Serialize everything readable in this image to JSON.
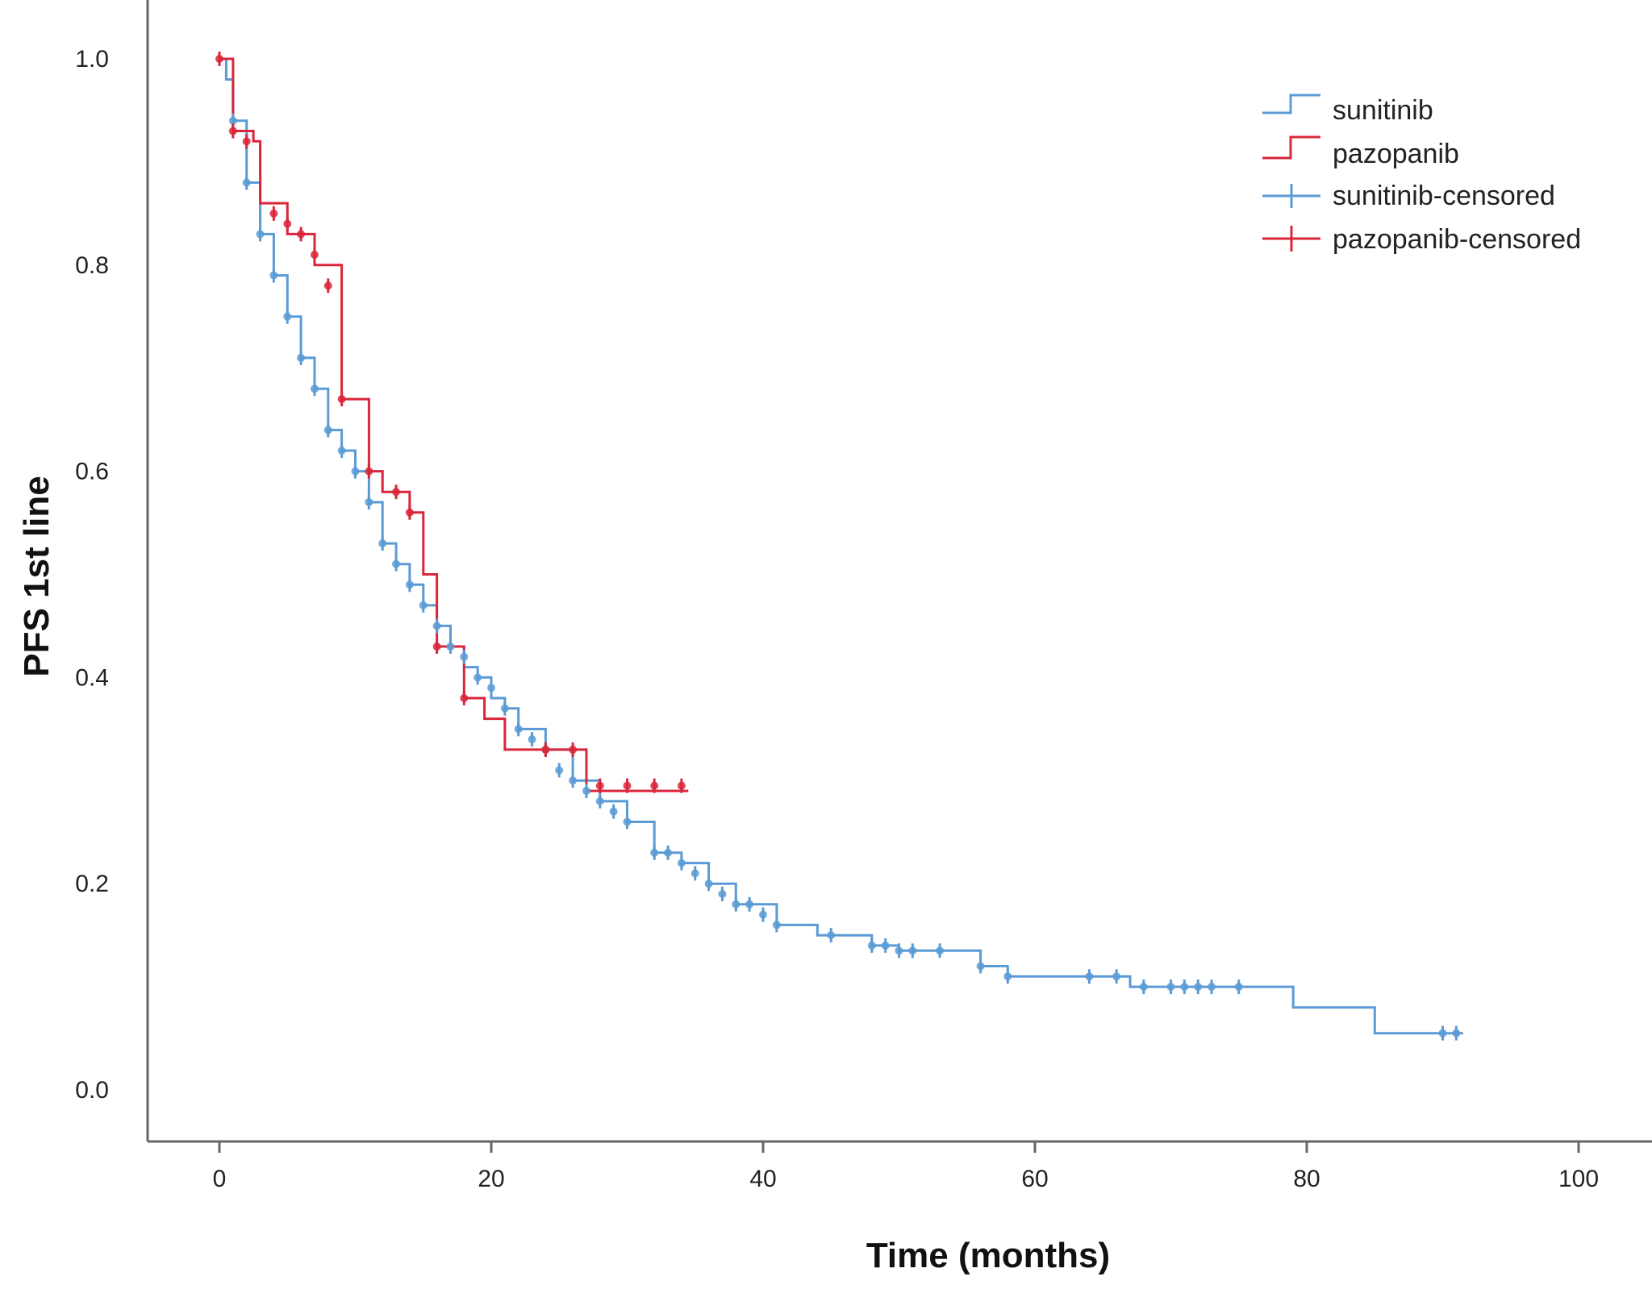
{
  "chart_data": {
    "type": "line",
    "subtype": "kaplan-meier-step",
    "xlabel": "Time (months)",
    "ylabel": "PFS 1st line",
    "xlim": [
      -4,
      104
    ],
    "ylim": [
      -0.03,
      1.07
    ],
    "xticks": [
      0,
      20,
      40,
      60,
      80,
      100
    ],
    "yticks": [
      0.0,
      0.2,
      0.4,
      0.6,
      0.8,
      1.0
    ],
    "xtick_labels": [
      "0",
      "20",
      "40",
      "60",
      "80",
      "100"
    ],
    "ytick_labels": [
      "0.0",
      "0.2",
      "0.4",
      "0.6",
      "0.8",
      "1.0"
    ],
    "grid": false,
    "legend_position": "top-right",
    "legend": [
      "sunitinib",
      "pazopanib",
      "sunitinib-censored",
      "pazopanib-censored"
    ],
    "series": [
      {
        "name": "sunitinib",
        "color": "#5b9bd5",
        "steps": [
          [
            0,
            1.0
          ],
          [
            0.5,
            0.98
          ],
          [
            1,
            0.94
          ],
          [
            2,
            0.88
          ],
          [
            3,
            0.83
          ],
          [
            4,
            0.79
          ],
          [
            5,
            0.75
          ],
          [
            6,
            0.71
          ],
          [
            7,
            0.68
          ],
          [
            8,
            0.64
          ],
          [
            9,
            0.62
          ],
          [
            10,
            0.6
          ],
          [
            11,
            0.57
          ],
          [
            12,
            0.53
          ],
          [
            13,
            0.51
          ],
          [
            14,
            0.49
          ],
          [
            15,
            0.47
          ],
          [
            16,
            0.45
          ],
          [
            17,
            0.43
          ],
          [
            18,
            0.41
          ],
          [
            19,
            0.4
          ],
          [
            20,
            0.38
          ],
          [
            21,
            0.37
          ],
          [
            22,
            0.35
          ],
          [
            24,
            0.33
          ],
          [
            26,
            0.3
          ],
          [
            28,
            0.28
          ],
          [
            30,
            0.26
          ],
          [
            32,
            0.23
          ],
          [
            34,
            0.22
          ],
          [
            36,
            0.2
          ],
          [
            38,
            0.18
          ],
          [
            41,
            0.16
          ],
          [
            44,
            0.15
          ],
          [
            48,
            0.14
          ],
          [
            50,
            0.135
          ],
          [
            56,
            0.12
          ],
          [
            58,
            0.11
          ],
          [
            67,
            0.1
          ],
          [
            79,
            0.08
          ],
          [
            85,
            0.055
          ],
          [
            91.5,
            0.055
          ]
        ],
        "censored": [
          [
            1,
            0.94
          ],
          [
            2,
            0.88
          ],
          [
            3,
            0.83
          ],
          [
            4,
            0.79
          ],
          [
            5,
            0.75
          ],
          [
            6,
            0.71
          ],
          [
            7,
            0.68
          ],
          [
            8,
            0.64
          ],
          [
            9,
            0.62
          ],
          [
            10,
            0.6
          ],
          [
            11,
            0.57
          ],
          [
            12,
            0.53
          ],
          [
            13,
            0.51
          ],
          [
            14,
            0.49
          ],
          [
            15,
            0.47
          ],
          [
            16,
            0.45
          ],
          [
            17,
            0.43
          ],
          [
            18,
            0.42
          ],
          [
            19,
            0.4
          ],
          [
            20,
            0.39
          ],
          [
            21,
            0.37
          ],
          [
            22,
            0.35
          ],
          [
            23,
            0.34
          ],
          [
            24,
            0.33
          ],
          [
            25,
            0.31
          ],
          [
            26,
            0.3
          ],
          [
            27,
            0.29
          ],
          [
            28,
            0.28
          ],
          [
            29,
            0.27
          ],
          [
            30,
            0.26
          ],
          [
            32,
            0.23
          ],
          [
            33,
            0.23
          ],
          [
            34,
            0.22
          ],
          [
            35,
            0.21
          ],
          [
            36,
            0.2
          ],
          [
            37,
            0.19
          ],
          [
            38,
            0.18
          ],
          [
            39,
            0.18
          ],
          [
            40,
            0.17
          ],
          [
            41,
            0.16
          ],
          [
            45,
            0.15
          ],
          [
            48,
            0.14
          ],
          [
            49,
            0.14
          ],
          [
            50,
            0.135
          ],
          [
            51,
            0.135
          ],
          [
            53,
            0.135
          ],
          [
            56,
            0.12
          ],
          [
            58,
            0.11
          ],
          [
            64,
            0.11
          ],
          [
            66,
            0.11
          ],
          [
            68,
            0.1
          ],
          [
            70,
            0.1
          ],
          [
            71,
            0.1
          ],
          [
            72,
            0.1
          ],
          [
            73,
            0.1
          ],
          [
            75,
            0.1
          ],
          [
            90,
            0.055
          ],
          [
            91,
            0.055
          ]
        ]
      },
      {
        "name": "pazopanib",
        "color": "#d9263a",
        "steps": [
          [
            0,
            1.0
          ],
          [
            1,
            0.93
          ],
          [
            2.5,
            0.92
          ],
          [
            3,
            0.86
          ],
          [
            5,
            0.83
          ],
          [
            7,
            0.8
          ],
          [
            9,
            0.67
          ],
          [
            11,
            0.6
          ],
          [
            12,
            0.58
          ],
          [
            14,
            0.56
          ],
          [
            15,
            0.5
          ],
          [
            16,
            0.43
          ],
          [
            18,
            0.38
          ],
          [
            19.5,
            0.36
          ],
          [
            21,
            0.33
          ],
          [
            27,
            0.29
          ],
          [
            34.5,
            0.29
          ]
        ],
        "censored": [
          [
            0,
            1.0
          ],
          [
            1,
            0.93
          ],
          [
            2,
            0.92
          ],
          [
            4,
            0.85
          ],
          [
            5,
            0.84
          ],
          [
            6,
            0.83
          ],
          [
            7,
            0.81
          ],
          [
            8,
            0.78
          ],
          [
            9,
            0.67
          ],
          [
            11,
            0.6
          ],
          [
            13,
            0.58
          ],
          [
            14,
            0.56
          ],
          [
            16,
            0.43
          ],
          [
            18,
            0.38
          ],
          [
            24,
            0.33
          ],
          [
            26,
            0.33
          ],
          [
            28,
            0.295
          ],
          [
            30,
            0.295
          ],
          [
            32,
            0.295
          ],
          [
            34,
            0.295
          ]
        ]
      }
    ]
  }
}
